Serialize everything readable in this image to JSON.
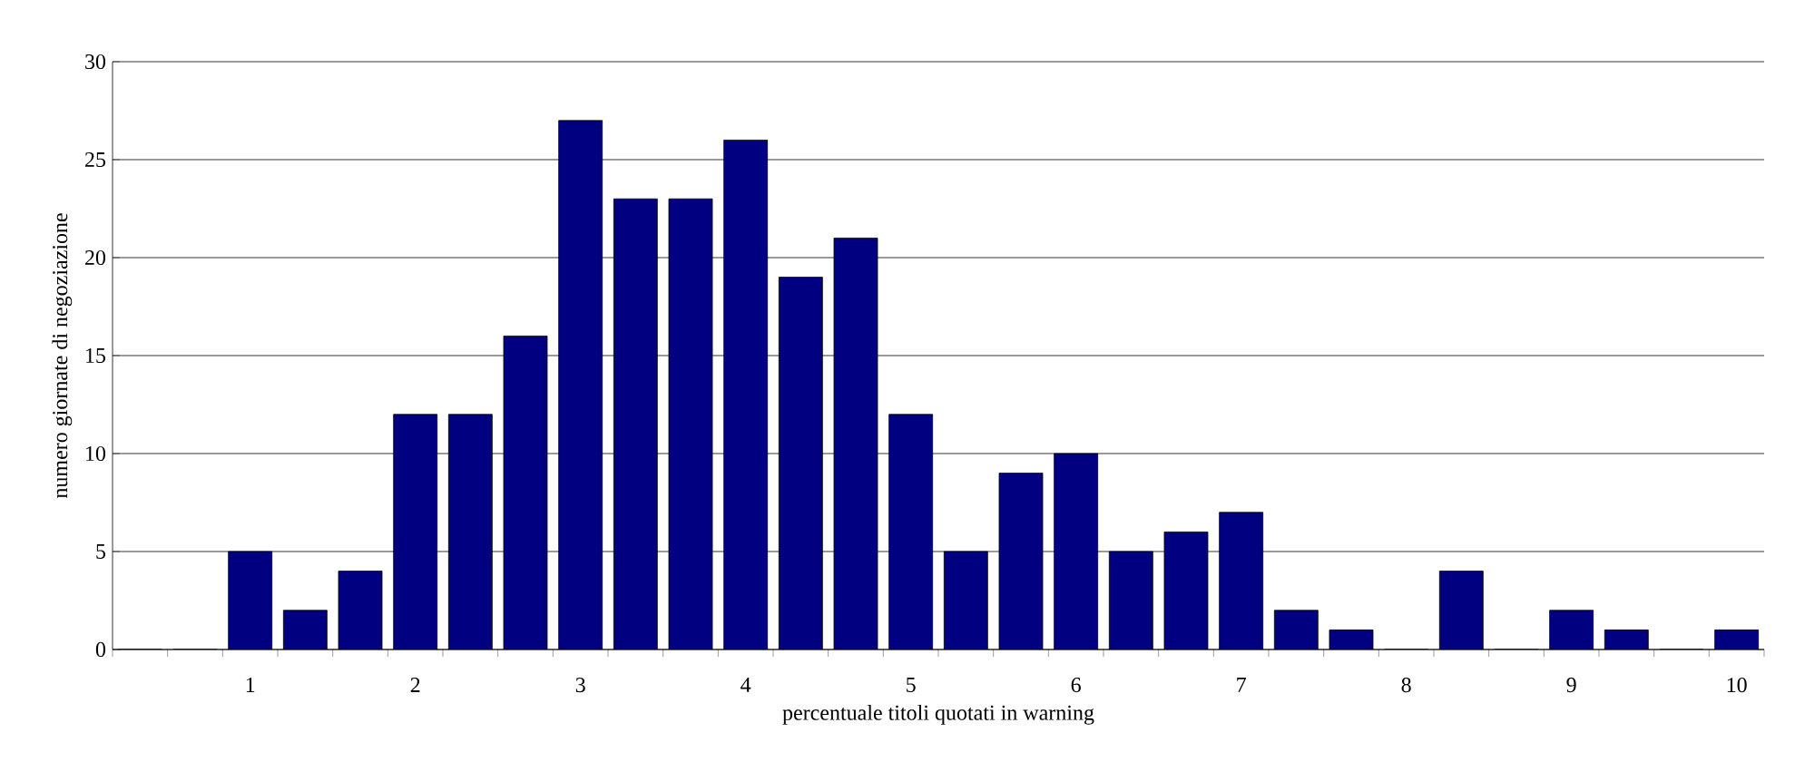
{
  "chart_data": {
    "type": "bar",
    "xlabel": "percentuale titoli quotati in warning",
    "ylabel": "numero giornate di negoziazione",
    "categories": [
      null,
      null,
      "1",
      null,
      null,
      "2",
      null,
      null,
      "3",
      null,
      null,
      "4",
      null,
      null,
      "5",
      null,
      null,
      "6",
      null,
      null,
      "7",
      null,
      null,
      "8",
      null,
      null,
      "9",
      null,
      null,
      "10"
    ],
    "values": [
      0,
      0,
      5,
      2,
      4,
      12,
      12,
      16,
      27,
      23,
      23,
      26,
      19,
      21,
      12,
      5,
      9,
      10,
      5,
      6,
      7,
      2,
      1,
      0,
      4,
      0,
      2,
      1,
      0,
      1
    ],
    "color": "#000080",
    "ylim": [
      0,
      30
    ],
    "yticks": [
      0,
      5,
      10,
      15,
      20,
      25,
      30
    ],
    "grid": "y"
  }
}
